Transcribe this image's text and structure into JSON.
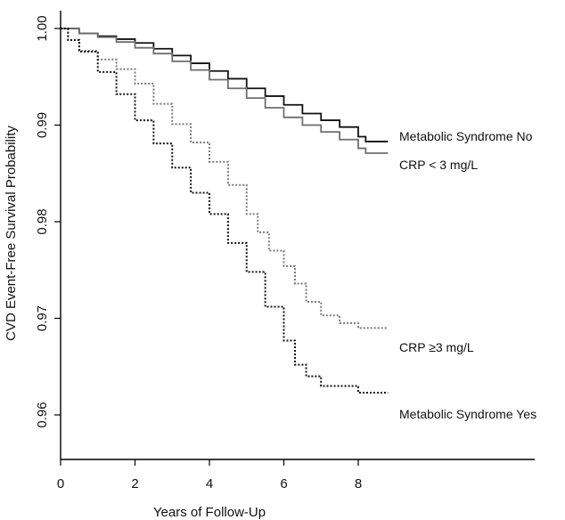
{
  "chart_data": {
    "type": "line",
    "title": "",
    "xlabel": "Years of Follow-Up",
    "ylabel": "CVD Event-Free Survival Probability",
    "xlim": [
      0,
      9
    ],
    "ylim": [
      0.9585,
      1.0015
    ],
    "xticks": [
      0,
      2,
      4,
      6,
      8
    ],
    "yticks": [
      0.96,
      0.97,
      0.98,
      0.99,
      1.0
    ],
    "xtick_labels": [
      "0",
      "2",
      "4",
      "6",
      "8"
    ],
    "ytick_labels": [
      "0.96",
      "0.97",
      "0.98",
      "0.99",
      "1.00"
    ],
    "grid": false,
    "legend": "none",
    "series": [
      {
        "name": "Metabolic Syndrome No",
        "color": "#111111",
        "dash": "solid",
        "points": [
          [
            0,
            1.0
          ],
          [
            0.5,
            0.9995
          ],
          [
            1,
            0.9992
          ],
          [
            1.5,
            0.9989
          ],
          [
            2,
            0.9985
          ],
          [
            2.5,
            0.9979
          ],
          [
            3,
            0.9972
          ],
          [
            3.5,
            0.9964
          ],
          [
            4,
            0.9956
          ],
          [
            4.5,
            0.9948
          ],
          [
            5,
            0.9938
          ],
          [
            5.5,
            0.993
          ],
          [
            6,
            0.9921
          ],
          [
            6.5,
            0.9912
          ],
          [
            7,
            0.9905
          ],
          [
            7.5,
            0.9898
          ],
          [
            8,
            0.9888
          ],
          [
            8.2,
            0.9883
          ],
          [
            8.8,
            0.9883
          ]
        ]
      },
      {
        "name": "CRP < 3 mg/L",
        "color": "#6e6e6e",
        "dash": "solid",
        "points": [
          [
            0,
            1.0
          ],
          [
            0.5,
            0.9995
          ],
          [
            1,
            0.9991
          ],
          [
            1.5,
            0.9986
          ],
          [
            2,
            0.998
          ],
          [
            2.5,
            0.9974
          ],
          [
            3,
            0.9966
          ],
          [
            3.5,
            0.9957
          ],
          [
            4,
            0.9947
          ],
          [
            4.5,
            0.9938
          ],
          [
            5,
            0.9928
          ],
          [
            5.5,
            0.9918
          ],
          [
            6,
            0.9908
          ],
          [
            6.5,
            0.99
          ],
          [
            7,
            0.9893
          ],
          [
            7.5,
            0.9885
          ],
          [
            8,
            0.9876
          ],
          [
            8.2,
            0.9871
          ],
          [
            8.8,
            0.9871
          ]
        ]
      },
      {
        "name": "CRP ≥3 mg/L",
        "color": "#7a7a7a",
        "dash": "dotted",
        "points": [
          [
            0,
            1.0
          ],
          [
            0.2,
            0.9988
          ],
          [
            0.5,
            0.9977
          ],
          [
            1,
            0.9968
          ],
          [
            1.5,
            0.9958
          ],
          [
            2,
            0.9943
          ],
          [
            2.5,
            0.9922
          ],
          [
            3,
            0.9901
          ],
          [
            3.5,
            0.9882
          ],
          [
            4,
            0.9862
          ],
          [
            4.5,
            0.9838
          ],
          [
            5,
            0.9808
          ],
          [
            5.3,
            0.9789
          ],
          [
            5.6,
            0.977
          ],
          [
            6,
            0.9754
          ],
          [
            6.3,
            0.9736
          ],
          [
            6.6,
            0.9717
          ],
          [
            7,
            0.9703
          ],
          [
            7.5,
            0.9695
          ],
          [
            8,
            0.969
          ],
          [
            8.8,
            0.969
          ]
        ]
      },
      {
        "name": "Metabolic Syndrome Yes",
        "color": "#111111",
        "dash": "dotted",
        "points": [
          [
            0,
            1.0
          ],
          [
            0.2,
            0.9988
          ],
          [
            0.5,
            0.9976
          ],
          [
            1,
            0.9955
          ],
          [
            1.5,
            0.9932
          ],
          [
            2,
            0.9905
          ],
          [
            2.5,
            0.9881
          ],
          [
            3,
            0.9856
          ],
          [
            3.5,
            0.983
          ],
          [
            4,
            0.9808
          ],
          [
            4.5,
            0.9778
          ],
          [
            5,
            0.9748
          ],
          [
            5.5,
            0.9712
          ],
          [
            6,
            0.9677
          ],
          [
            6.3,
            0.9652
          ],
          [
            6.6,
            0.964
          ],
          [
            7,
            0.963
          ],
          [
            7.5,
            0.963
          ],
          [
            8,
            0.9623
          ],
          [
            8.8,
            0.9623
          ]
        ]
      }
    ]
  }
}
